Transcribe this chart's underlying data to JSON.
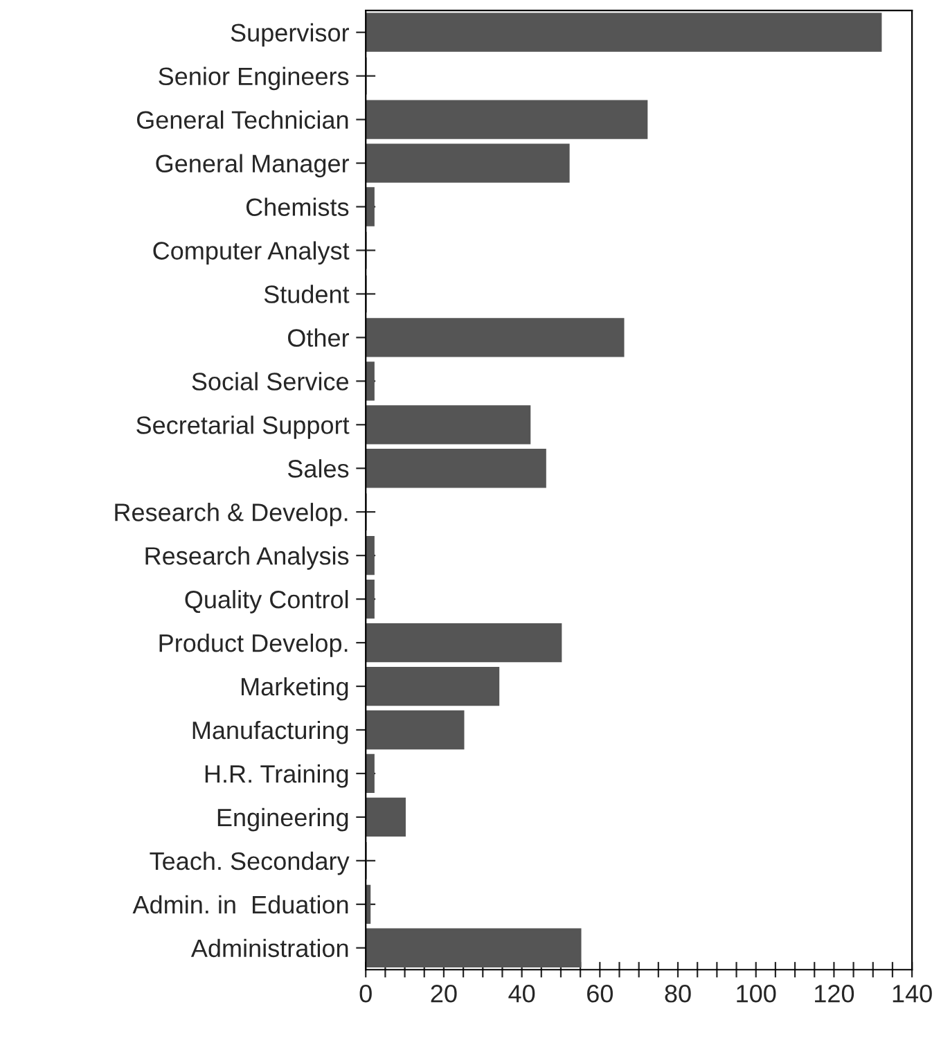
{
  "chart_data": {
    "type": "bar",
    "orientation": "horizontal",
    "categories": [
      "Supervisor",
      "Senior Engineers",
      "General Technician",
      "General Manager",
      "Chemists",
      "Computer Analyst",
      "Student",
      "Other",
      "Social Service",
      "Secretarial Support",
      "Sales",
      "Research & Develop.",
      "Research Analysis",
      "Quality Control",
      "Product Develop.",
      "Marketing",
      "Manufacturing",
      "H.R. Training",
      "Engineering",
      "Teach. Secondary",
      "Admin. in  Eduation",
      "Administration"
    ],
    "values": [
      132,
      0,
      72,
      52,
      2,
      0,
      0,
      66,
      2,
      42,
      46,
      0,
      2,
      2,
      50,
      34,
      25,
      2,
      10,
      0,
      1,
      55
    ],
    "color": "#555555",
    "xlim": [
      0,
      140
    ],
    "xticks": [
      0,
      {
        "value": 5,
        "label": null
      },
      {
        "value": 10,
        "label": null
      },
      {
        "value": 15,
        "label": null
      },
      20,
      {
        "value": 25,
        "label": null
      },
      {
        "value": 30,
        "label": null
      },
      {
        "value": 35,
        "label": null
      },
      40,
      {
        "value": 45,
        "label": null
      },
      {
        "value": 50,
        "label": null
      },
      {
        "value": 55,
        "label": null
      },
      60,
      {
        "value": 65,
        "label": null
      },
      {
        "value": 70,
        "label": null
      },
      {
        "value": 75,
        "label": null
      },
      80,
      {
        "value": 85,
        "label": null
      },
      {
        "value": 90,
        "label": null
      },
      {
        "value": 95,
        "label": null
      },
      100,
      {
        "value": 105,
        "label": null
      },
      {
        "value": 110,
        "label": null
      },
      {
        "value": 115,
        "label": null
      },
      120,
      {
        "value": 125,
        "label": null
      },
      {
        "value": 130,
        "label": null
      },
      {
        "value": 135,
        "label": null
      },
      140
    ],
    "grid": false,
    "legend": false
  }
}
